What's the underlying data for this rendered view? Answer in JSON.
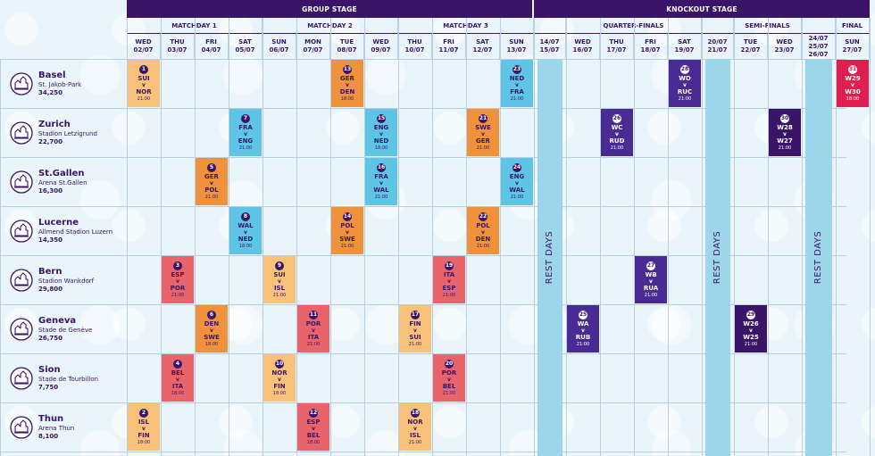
{
  "bands": [
    {
      "label": "GROUP STAGE",
      "start": 0,
      "end": 12
    },
    {
      "label": "KNOCKOUT STAGE",
      "start": 12,
      "end": 22
    }
  ],
  "groups": [
    {
      "label": "MATCHDAY 1",
      "start": 0,
      "end": 4
    },
    {
      "label": "MATCHDAY 2",
      "start": 4,
      "end": 8
    },
    {
      "label": "MATCHDAY 3",
      "start": 8,
      "end": 12
    },
    {
      "label": "",
      "start": 12,
      "end": 13
    },
    {
      "label": "QUARTER-FINALS",
      "start": 13,
      "end": 17
    },
    {
      "label": "",
      "start": 17,
      "end": 18
    },
    {
      "label": "SEMI-FINALS",
      "start": 18,
      "end": 20
    },
    {
      "label": "",
      "start": 20,
      "end": 21
    },
    {
      "label": "FINAL",
      "start": 21,
      "end": 22
    }
  ],
  "days": [
    {
      "lines": [
        "WED",
        "02/07"
      ]
    },
    {
      "lines": [
        "THU",
        "03/07"
      ]
    },
    {
      "lines": [
        "FRI",
        "04/07"
      ]
    },
    {
      "lines": [
        "SAT",
        "05/07"
      ]
    },
    {
      "lines": [
        "SUN",
        "06/07"
      ]
    },
    {
      "lines": [
        "MON",
        "07/07"
      ]
    },
    {
      "lines": [
        "TUE",
        "08/07"
      ]
    },
    {
      "lines": [
        "WED",
        "09/07"
      ]
    },
    {
      "lines": [
        "THU",
        "10/07"
      ]
    },
    {
      "lines": [
        "FRI",
        "11/07"
      ]
    },
    {
      "lines": [
        "SAT",
        "12/07"
      ]
    },
    {
      "lines": [
        "SUN",
        "13/07"
      ]
    },
    {
      "lines": [
        "14/07",
        "15/07"
      ]
    },
    {
      "lines": [
        "WED",
        "16/07"
      ]
    },
    {
      "lines": [
        "THU",
        "17/07"
      ]
    },
    {
      "lines": [
        "FRI",
        "18/07"
      ]
    },
    {
      "lines": [
        "SAT",
        "19/07"
      ]
    },
    {
      "lines": [
        "20/07",
        "21/07"
      ]
    },
    {
      "lines": [
        "TUE",
        "22/07"
      ]
    },
    {
      "lines": [
        "WED",
        "23/07"
      ]
    },
    {
      "lines": [
        "24/07",
        "25/07",
        "26/07"
      ]
    },
    {
      "lines": [
        "SUN",
        "27/07"
      ]
    }
  ],
  "rest_days": {
    "label": "REST DAYS",
    "columns": [
      12,
      17,
      20
    ]
  },
  "venues": [
    {
      "city": "Basel",
      "stadium": "St. Jakob-Park",
      "capacity": "34,250",
      "icon": "basel-icon"
    },
    {
      "city": "Zurich",
      "stadium": "Stadion Letzigrund",
      "capacity": "22,700",
      "icon": "zurich-icon"
    },
    {
      "city": "St.Gallen",
      "stadium": "Arena St.Gallen",
      "capacity": "16,300",
      "icon": "stgallen-icon"
    },
    {
      "city": "Lucerne",
      "stadium": "Allmend Stadion Luzern",
      "capacity": "14,350",
      "icon": "lucerne-icon"
    },
    {
      "city": "Bern",
      "stadium": "Stadion Wankdorf",
      "capacity": "29,800",
      "icon": "bern-icon"
    },
    {
      "city": "Geneva",
      "stadium": "Stade de Genève",
      "capacity": "26,750",
      "icon": "geneva-icon"
    },
    {
      "city": "Sion",
      "stadium": "Stade de Tourbillon",
      "capacity": "7,750",
      "icon": "sion-icon"
    },
    {
      "city": "Thun",
      "stadium": "Arena Thun",
      "capacity": "8,100",
      "icon": "thun-icon"
    }
  ],
  "colors": {
    "A": "#f9c17a",
    "B": "#5fc5e6",
    "C": "#f0923b",
    "D": "#e9636b",
    "knockout": "#4a2a93",
    "semi": "#3a1466",
    "final": "#e01e4f"
  },
  "matches": [
    {
      "num": "1",
      "home": "SUI",
      "away": "NOR",
      "time": "21:00",
      "row": 0,
      "col": 0,
      "color": "A"
    },
    {
      "num": "13",
      "home": "GER",
      "away": "DEN",
      "time": "18:00",
      "row": 0,
      "col": 6,
      "color": "C"
    },
    {
      "num": "23",
      "home": "NED",
      "away": "FRA",
      "time": "21:00",
      "row": 0,
      "col": 11,
      "color": "B"
    },
    {
      "num": "28",
      "home": "WD",
      "away": "RUC",
      "time": "21:00",
      "row": 0,
      "col": 16,
      "color": "knockout"
    },
    {
      "num": "31",
      "home": "W29",
      "away": "W30",
      "time": "18:00",
      "row": 0,
      "col": 21,
      "color": "final"
    },
    {
      "num": "7",
      "home": "FRA",
      "away": "ENG",
      "time": "21:00",
      "row": 1,
      "col": 3,
      "color": "B"
    },
    {
      "num": "15",
      "home": "ENG",
      "away": "NED",
      "time": "18:00",
      "row": 1,
      "col": 7,
      "color": "B"
    },
    {
      "num": "21",
      "home": "SWE",
      "away": "GER",
      "time": "21:00",
      "row": 1,
      "col": 10,
      "color": "C"
    },
    {
      "num": "26",
      "home": "WC",
      "away": "RUD",
      "time": "21:00",
      "row": 1,
      "col": 14,
      "color": "knockout"
    },
    {
      "num": "30",
      "home": "W28",
      "away": "W27",
      "time": "21:00",
      "row": 1,
      "col": 19,
      "color": "semi"
    },
    {
      "num": "5",
      "home": "GER",
      "away": "POL",
      "time": "21:00",
      "row": 2,
      "col": 2,
      "color": "C"
    },
    {
      "num": "16",
      "home": "FRA",
      "away": "WAL",
      "time": "21:00",
      "row": 2,
      "col": 7,
      "color": "B"
    },
    {
      "num": "24",
      "home": "ENG",
      "away": "WAL",
      "time": "21:00",
      "row": 2,
      "col": 11,
      "color": "B"
    },
    {
      "num": "8",
      "home": "WAL",
      "away": "NED",
      "time": "18:00",
      "row": 3,
      "col": 3,
      "color": "B"
    },
    {
      "num": "14",
      "home": "POL",
      "away": "SWE",
      "time": "21:00",
      "row": 3,
      "col": 6,
      "color": "C"
    },
    {
      "num": "22",
      "home": "POL",
      "away": "DEN",
      "time": "21:00",
      "row": 3,
      "col": 10,
      "color": "C"
    },
    {
      "num": "3",
      "home": "ESP",
      "away": "POR",
      "time": "21:00",
      "row": 4,
      "col": 1,
      "color": "D"
    },
    {
      "num": "9",
      "home": "SUI",
      "away": "ISL",
      "time": "21:00",
      "row": 4,
      "col": 4,
      "color": "A"
    },
    {
      "num": "19",
      "home": "ITA",
      "away": "ESP",
      "time": "21:00",
      "row": 4,
      "col": 9,
      "color": "D"
    },
    {
      "num": "27",
      "home": "WB",
      "away": "RUA",
      "time": "21:00",
      "row": 4,
      "col": 15,
      "color": "knockout"
    },
    {
      "num": "6",
      "home": "DEN",
      "away": "SWE",
      "time": "18:00",
      "row": 5,
      "col": 2,
      "color": "C"
    },
    {
      "num": "11",
      "home": "POR",
      "away": "ITA",
      "time": "21:00",
      "row": 5,
      "col": 5,
      "color": "D"
    },
    {
      "num": "17",
      "home": "FIN",
      "away": "SUI",
      "time": "21:00",
      "row": 5,
      "col": 8,
      "color": "A"
    },
    {
      "num": "25",
      "home": "WA",
      "away": "RUB",
      "time": "21:00",
      "row": 5,
      "col": 13,
      "color": "knockout"
    },
    {
      "num": "29",
      "home": "W26",
      "away": "W25",
      "time": "21:00",
      "row": 5,
      "col": 18,
      "color": "semi"
    },
    {
      "num": "4",
      "home": "BEL",
      "away": "ITA",
      "time": "18:00",
      "row": 6,
      "col": 1,
      "color": "D"
    },
    {
      "num": "10",
      "home": "NOR",
      "away": "FIN",
      "time": "18:00",
      "row": 6,
      "col": 4,
      "color": "A"
    },
    {
      "num": "20",
      "home": "POR",
      "away": "BEL",
      "time": "21:00",
      "row": 6,
      "col": 9,
      "color": "D"
    },
    {
      "num": "2",
      "home": "ISL",
      "away": "FIN",
      "time": "18:00",
      "row": 7,
      "col": 0,
      "color": "A"
    },
    {
      "num": "12",
      "home": "ESP",
      "away": "BEL",
      "time": "18:00",
      "row": 7,
      "col": 5,
      "color": "D"
    },
    {
      "num": "18",
      "home": "NOR",
      "away": "ISL",
      "time": "21:00",
      "row": 7,
      "col": 8,
      "color": "A"
    }
  ]
}
